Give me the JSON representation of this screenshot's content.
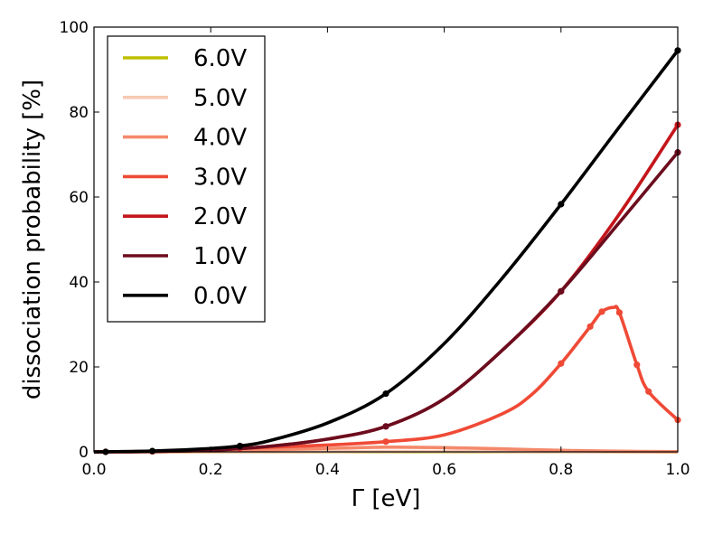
{
  "chart_data": {
    "type": "line",
    "title": "",
    "xlabel": "Γ [eV]",
    "ylabel": "dissociation probability [%]",
    "xlim": [
      0.0,
      1.0
    ],
    "ylim": [
      0,
      100
    ],
    "xticks": [
      "0.0",
      "0.2",
      "0.4",
      "0.6",
      "0.8",
      "1.0"
    ],
    "yticks": [
      "0",
      "20",
      "40",
      "60",
      "80",
      "100"
    ],
    "grid": false,
    "legend_position": "top-left",
    "series": [
      {
        "name": "6.0V",
        "color": "#bfbf00",
        "x": [
          0.0,
          1.0
        ],
        "y": [
          0.0,
          0.0
        ],
        "markers_x": [],
        "markers_y": []
      },
      {
        "name": "5.0V",
        "color": "#f8c9b3",
        "x": [
          0.0,
          0.1,
          0.2,
          0.3,
          0.4,
          0.5,
          0.6,
          0.7,
          0.8,
          0.9,
          1.0
        ],
        "y": [
          0.0,
          0.0,
          0.0,
          0.0,
          0.05,
          0.1,
          0.1,
          0.05,
          0.0,
          0.0,
          0.0
        ],
        "markers_x": [],
        "markers_y": []
      },
      {
        "name": "4.0V",
        "color": "#f4896b",
        "x": [
          0.0,
          0.1,
          0.2,
          0.25,
          0.3,
          0.4,
          0.5,
          0.6,
          0.7,
          0.8,
          0.9,
          1.0
        ],
        "y": [
          0.0,
          0.05,
          0.2,
          0.35,
          0.5,
          0.8,
          1.1,
          1.0,
          0.7,
          0.35,
          0.15,
          0.05
        ],
        "markers_x": [],
        "markers_y": []
      },
      {
        "name": "3.0V",
        "color": "#ef4a36",
        "x": [
          0.0,
          0.02,
          0.1,
          0.2,
          0.25,
          0.3,
          0.4,
          0.5,
          0.6,
          0.7,
          0.75,
          0.8,
          0.85,
          0.87,
          0.89,
          0.9,
          0.93,
          0.95,
          1.0
        ],
        "y": [
          0.0,
          0.0,
          0.1,
          0.5,
          0.8,
          1.1,
          1.6,
          2.4,
          4.0,
          9.0,
          13.5,
          20.8,
          29.5,
          33.0,
          34.0,
          32.8,
          20.5,
          14.2,
          7.5
        ],
        "markers_x": [
          0.02,
          0.1,
          0.25,
          0.5,
          0.8,
          0.85,
          0.87,
          0.9,
          0.93,
          0.95,
          1.0
        ],
        "markers_y": [
          0.0,
          0.1,
          0.8,
          2.4,
          20.8,
          29.5,
          33.0,
          32.8,
          20.5,
          14.2,
          7.5
        ]
      },
      {
        "name": "2.0V",
        "color": "#c4161c",
        "x": [
          0.0,
          0.1,
          0.2,
          0.3,
          0.4,
          0.5,
          0.6,
          0.7,
          0.8,
          0.9,
          1.0
        ],
        "y": [
          0.0,
          0.1,
          0.4,
          1.3,
          3.0,
          6.0,
          12.5,
          24.0,
          37.8,
          56.0,
          77.0
        ],
        "markers_x": [
          0.5,
          0.8,
          1.0
        ],
        "markers_y": [
          6.0,
          37.8,
          77.0
        ]
      },
      {
        "name": "1.0V",
        "color": "#6b0d1e",
        "x": [
          0.0,
          0.1,
          0.2,
          0.3,
          0.4,
          0.5,
          0.6,
          0.7,
          0.8,
          0.9,
          1.0
        ],
        "y": [
          0.0,
          0.1,
          0.4,
          1.3,
          3.0,
          6.0,
          12.5,
          24.0,
          37.8,
          54.0,
          70.5
        ],
        "markers_x": [
          0.5,
          0.8,
          1.0
        ],
        "markers_y": [
          6.0,
          37.8,
          70.5
        ]
      },
      {
        "name": "0.0V",
        "color": "#000000",
        "x": [
          0.0,
          0.1,
          0.2,
          0.25,
          0.3,
          0.4,
          0.5,
          0.6,
          0.7,
          0.8,
          0.9,
          1.0
        ],
        "y": [
          0.0,
          0.2,
          0.8,
          1.4,
          2.6,
          6.8,
          13.7,
          25.5,
          41.0,
          58.3,
          76.5,
          94.5
        ],
        "markers_x": [
          0.02,
          0.1,
          0.25,
          0.5,
          0.8,
          1.0
        ],
        "markers_y": [
          0.0,
          0.2,
          1.4,
          13.7,
          58.3,
          94.5
        ]
      }
    ]
  }
}
